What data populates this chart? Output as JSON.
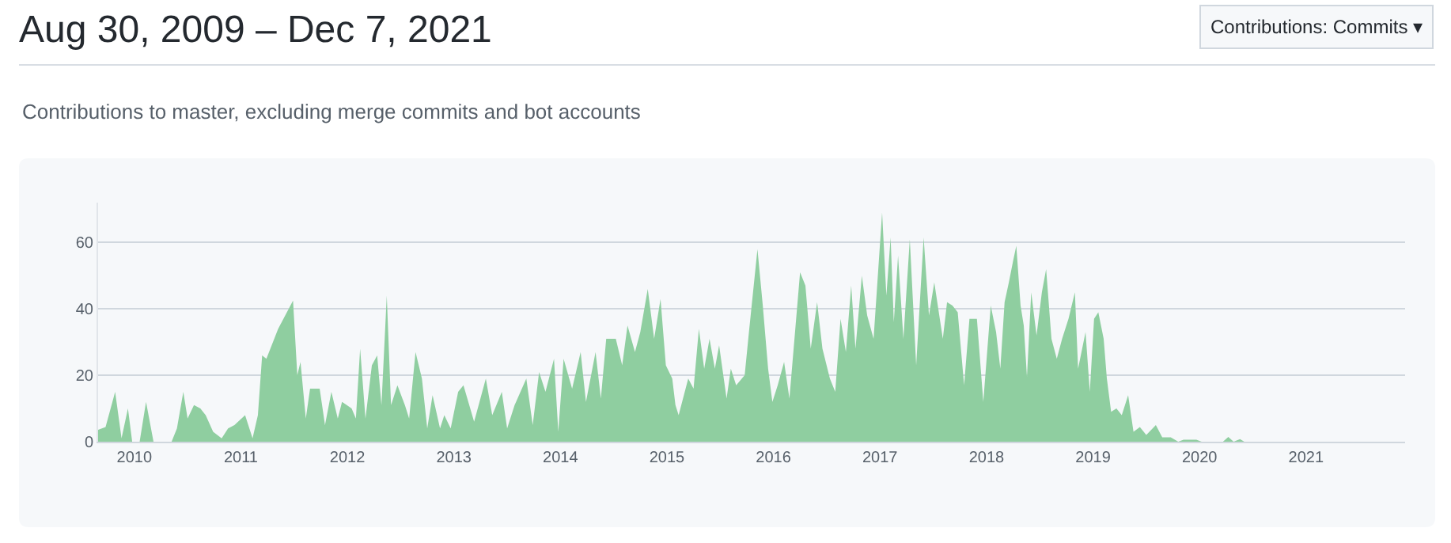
{
  "chart_data": {
    "type": "area",
    "title": "Aug 30, 2009 – Dec 7, 2021",
    "subtitle": "Contributions to master, excluding merge commits and bot accounts",
    "annotations": [
      "Contributions: Commits ▾"
    ],
    "x": [
      2009.66,
      2009.73,
      2009.82,
      2009.88,
      2009.94,
      2009.98,
      2010.05,
      2010.11,
      2010.18,
      2010.35,
      2010.4,
      2010.46,
      2010.5,
      2010.56,
      2010.62,
      2010.67,
      2010.74,
      2010.82,
      2010.88,
      2010.94,
      2011.04,
      2011.11,
      2011.16,
      2011.2,
      2011.24,
      2011.35,
      2011.49,
      2011.53,
      2011.56,
      2011.61,
      2011.65,
      2011.74,
      2011.79,
      2011.85,
      2011.91,
      2011.95,
      2012.04,
      2012.08,
      2012.12,
      2012.17,
      2012.23,
      2012.28,
      2012.32,
      2012.37,
      2012.41,
      2012.47,
      2012.54,
      2012.58,
      2012.64,
      2012.7,
      2012.75,
      2012.8,
      2012.87,
      2012.91,
      2012.97,
      2013.04,
      2013.09,
      2013.19,
      2013.3,
      2013.36,
      2013.45,
      2013.5,
      2013.57,
      2013.68,
      2013.74,
      2013.8,
      2013.86,
      2013.94,
      2013.98,
      2014.03,
      2014.11,
      2014.19,
      2014.24,
      2014.33,
      2014.38,
      2014.43,
      2014.52,
      2014.58,
      2014.63,
      2014.7,
      2014.75,
      2014.82,
      2014.88,
      2014.94,
      2014.99,
      2015.05,
      2015.08,
      2015.11,
      2015.2,
      2015.25,
      2015.3,
      2015.35,
      2015.4,
      2015.45,
      2015.49,
      2015.56,
      2015.6,
      2015.65,
      2015.73,
      2015.77,
      2015.85,
      2015.9,
      2015.95,
      2015.99,
      2016.04,
      2016.1,
      2016.15,
      2016.25,
      2016.3,
      2016.35,
      2016.41,
      2016.46,
      2016.53,
      2016.58,
      2016.63,
      2016.68,
      2016.73,
      2016.77,
      2016.83,
      2016.88,
      2016.94,
      2017.02,
      2017.06,
      2017.1,
      2017.13,
      2017.17,
      2017.22,
      2017.28,
      2017.34,
      2017.41,
      2017.46,
      2017.51,
      2017.59,
      2017.63,
      2017.68,
      2017.73,
      2017.79,
      2017.84,
      2017.91,
      2017.97,
      2018.04,
      2018.09,
      2018.13,
      2018.17,
      2018.21,
      2018.25,
      2018.28,
      2018.32,
      2018.35,
      2018.38,
      2018.42,
      2018.47,
      2018.52,
      2018.56,
      2018.61,
      2018.66,
      2018.71,
      2018.77,
      2018.83,
      2018.86,
      2018.93,
      2018.97,
      2019.01,
      2019.05,
      2019.1,
      2019.13,
      2019.17,
      2019.22,
      2019.27,
      2019.33,
      2019.38,
      2019.44,
      2019.5,
      2019.59,
      2019.65,
      2019.73,
      2019.8,
      2019.85,
      2019.97,
      2020.02,
      2020.22,
      2020.27,
      2020.32,
      2020.38,
      2020.42,
      2020.5,
      2021.93
    ],
    "values": [
      3.6,
      4.4,
      15,
      1,
      10,
      0,
      0,
      12,
      0,
      0,
      4,
      15,
      7,
      11,
      10,
      8,
      3,
      1,
      4,
      5,
      8,
      1,
      8,
      26,
      25,
      34,
      42.5,
      20,
      24,
      7,
      16,
      16,
      5,
      15,
      7,
      12,
      10,
      7,
      28,
      7,
      23,
      26,
      11,
      44,
      11,
      17,
      11,
      7,
      27,
      19,
      4,
      14,
      4,
      8,
      4,
      15,
      17,
      6,
      19,
      8,
      15,
      4,
      11,
      19,
      5,
      21,
      15,
      25,
      3,
      25,
      16,
      27,
      12,
      27,
      13,
      31,
      31,
      23,
      35,
      27,
      33,
      46,
      31,
      43,
      23,
      19,
      11,
      8,
      19,
      16,
      34,
      22,
      31,
      22,
      29,
      13,
      22,
      17,
      20,
      33,
      58,
      41,
      22,
      12,
      17,
      24,
      13,
      51,
      47,
      28,
      42,
      28,
      19,
      15,
      37,
      27,
      47,
      28,
      50,
      38,
      31,
      69,
      44,
      61.5,
      36,
      56,
      31,
      61,
      23,
      61.5,
      38,
      48,
      31,
      42,
      41,
      39,
      17,
      37,
      37,
      12,
      41,
      33,
      22,
      42,
      48,
      54.5,
      59,
      41,
      35,
      19.5,
      45,
      32,
      45,
      52,
      31,
      25,
      31,
      37,
      45,
      22,
      33,
      15,
      37,
      39,
      31,
      19,
      9,
      10,
      8,
      14,
      3,
      4.4,
      2,
      5,
      1.3,
      1.3,
      0,
      0.6,
      0.6,
      0,
      0,
      1.4,
      0,
      0.8,
      0,
      0,
      0
    ],
    "color": "#8fcea0",
    "xlim": [
      2009.66,
      2021.93
    ],
    "xticks": [
      2010,
      2011,
      2012,
      2013,
      2014,
      2015,
      2016,
      2017,
      2018,
      2019,
      2020,
      2021
    ],
    "ylim": [
      0,
      72
    ],
    "yticks": [
      0,
      20,
      40,
      60
    ],
    "grid": "y"
  }
}
